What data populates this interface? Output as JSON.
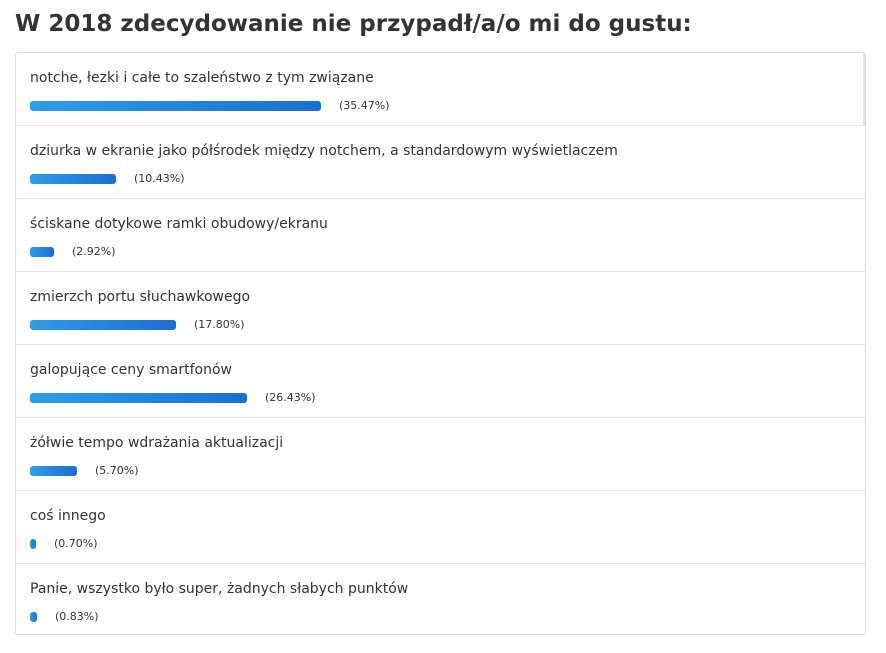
{
  "poll": {
    "title": "W 2018 zdecydowanie nie przypadł/a/o mi do gustu:",
    "colors": {
      "bar_start": "#2e9de9",
      "bar_end": "#1a6fd0",
      "border": "#dcdcdc",
      "text": "#333333"
    },
    "options": [
      {
        "label": "notche, łezki i całe to szaleństwo z tym związane",
        "percent_text": "(35.47%)",
        "value": 35.47
      },
      {
        "label": "dziurka w ekranie jako półśrodek między notchem, a standardowym wyświetlaczem",
        "percent_text": "(10.43%)",
        "value": 10.43
      },
      {
        "label": "ściskane dotykowe ramki obudowy/ekranu",
        "percent_text": "(2.92%)",
        "value": 2.92
      },
      {
        "label": "zmierzch portu słuchawkowego",
        "percent_text": "(17.80%)",
        "value": 17.8
      },
      {
        "label": "galopujące ceny smartfonów",
        "percent_text": "(26.43%)",
        "value": 26.43
      },
      {
        "label": "żółwie tempo wdrażania aktualizacji",
        "percent_text": "(5.70%)",
        "value": 5.7
      },
      {
        "label": "coś innego",
        "percent_text": "(0.70%)",
        "value": 0.7
      },
      {
        "label": "Panie, wszystko było super, żadnych słabych punktów",
        "percent_text": "(0.83%)",
        "value": 0.83
      }
    ]
  }
}
